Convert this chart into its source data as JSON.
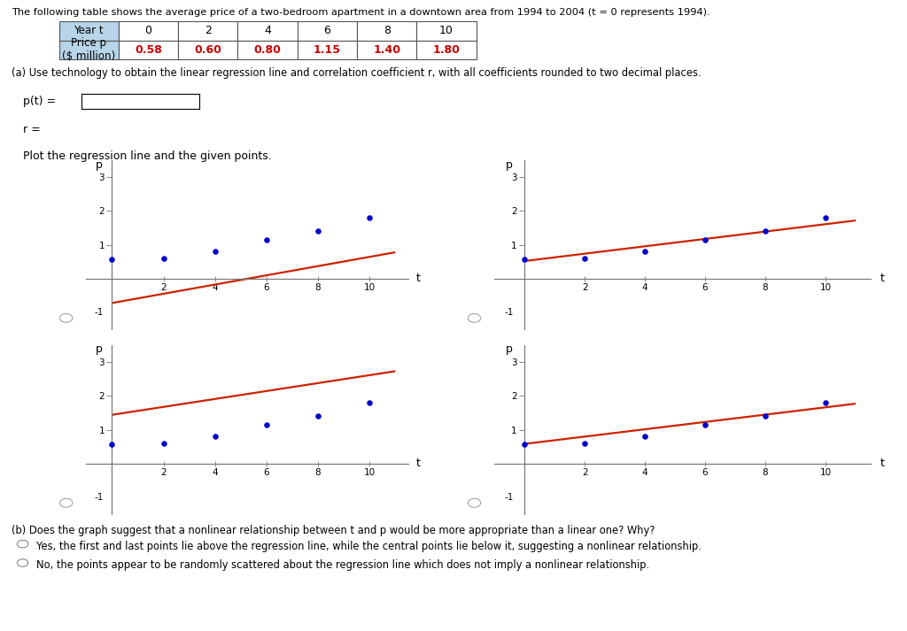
{
  "title_text": "The following table shows the average price of a two-bedroom apartment in a downtown area from 1994 to 2004 (t = 0 represents 1994).",
  "table_years": [
    0,
    2,
    4,
    6,
    8,
    10
  ],
  "table_prices": [
    0.58,
    0.6,
    0.8,
    1.15,
    1.4,
    1.8
  ],
  "part_a_text": "(a) Use technology to obtain the linear regression line and correlation coefficient r, with all coefficients rounded to two decimal places.",
  "pt_label": "p(t) =",
  "r_label": "r =",
  "plot_label": "Plot the regression line and the given points.",
  "point_color": "#0000cc",
  "line_color": "#cc2200",
  "background_color": "#ffffff",
  "xlim": [
    -1,
    11.5
  ],
  "ylim": [
    -1.5,
    3.5
  ],
  "xticks": [
    2,
    4,
    6,
    8,
    10
  ],
  "yticks": [
    1,
    2,
    3
  ],
  "ytick_neg": [
    -1
  ],
  "xlabel": "t",
  "ylabel": "p",
  "charts": [
    {
      "line_x": [
        0,
        11
      ],
      "line_y": [
        -0.72,
        0.78
      ]
    },
    {
      "line_x": [
        0,
        11
      ],
      "line_y": [
        0.52,
        1.72
      ]
    },
    {
      "line_x": [
        0,
        11
      ],
      "line_y": [
        1.44,
        2.73
      ]
    },
    {
      "line_x": [
        0,
        11
      ],
      "line_y": [
        0.58,
        1.77
      ]
    }
  ],
  "part_b_text": "(b) Does the graph suggest that a nonlinear relationship between t and p would be more appropriate than a linear one? Why?",
  "answer1": "Yes, the first and last points lie above the regression line, while the central points lie below it, suggesting a nonlinear relationship.",
  "answer2": "No, the points appear to be randomly scattered about the regression line which does not imply a nonlinear relationship."
}
